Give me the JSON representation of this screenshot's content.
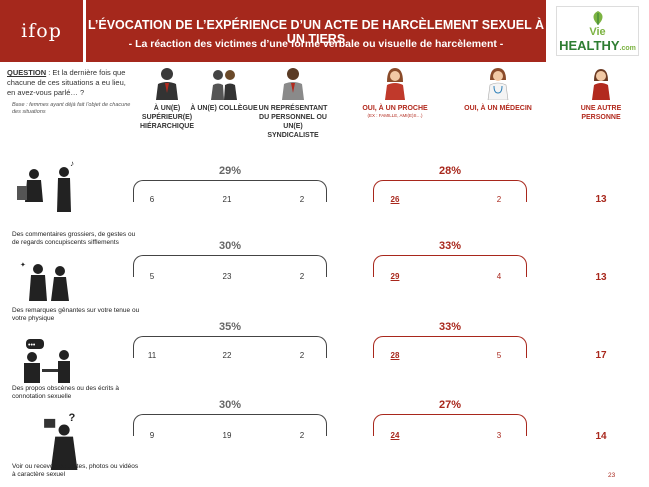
{
  "logo": {
    "text": "ifop"
  },
  "header": {
    "title": "L’ÉVOCATION DE L’EXPÉRIENCE D’UN ACTE DE HARCÈLEMENT SEXUEL À UN TIERS",
    "subtitle": "- La réaction des victimes d’une forme verbale ou visuelle de harcèlement -"
  },
  "partner_logo": {
    "line1": "Vie",
    "line2": "HEALTHY",
    "suffix": ".com"
  },
  "question": {
    "label": "QUESTION",
    "text": " : Et la dernière fois que chacune de ces situations a eu lieu, en avez-vous parlé… ?",
    "base": "Base : femmes ayant déjà fait l’objet de chacune des situations"
  },
  "columns": [
    {
      "label": "À UN(E) SUPÉRIEUR(E) HIÉRARCHIQUE",
      "icon": "businessman-icon"
    },
    {
      "label": "À UN(E) COLLÈGUE",
      "icon": "colleagues-icon"
    },
    {
      "label": "UN REPRÉSENTANT DU PERSONNEL OU UN(E) SYNDICALISTE",
      "icon": "representative-icon"
    },
    {
      "label": "OUI, À UN PROCHE",
      "sub": "(EX : FAMILLE, AMI(E)S…)",
      "icon": "woman-icon"
    },
    {
      "label": "OUI, À UN MÉDECIN",
      "icon": "doctor-icon"
    },
    {
      "label": "UNE AUTRE PERSONNE",
      "icon": "person-icon"
    }
  ],
  "rows": [
    {
      "label": "Des commentaires grossiers, de gestes ou de regards concupiscents sifflements",
      "work_total": "29%",
      "work": [
        "6",
        "21",
        "2"
      ],
      "private_total": "28%",
      "private": [
        "26",
        "2"
      ],
      "other": "13"
    },
    {
      "label": "Des remarques gênantes sur votre tenue ou votre physique",
      "work_total": "30%",
      "work": [
        "5",
        "23",
        "2"
      ],
      "private_total": "33%",
      "private": [
        "29",
        "4"
      ],
      "other": "13"
    },
    {
      "label": "Des propos obscènes ou des écrits à connotation sexuelle",
      "work_total": "35%",
      "work": [
        "11",
        "22",
        "2"
      ],
      "private_total": "33%",
      "private": [
        "28",
        "5"
      ],
      "other": "17"
    },
    {
      "label": "Voir ou recevoir de textes, photos ou vidéos à caractère sexuel",
      "work_total": "30%",
      "work": [
        "9",
        "19",
        "2"
      ],
      "private_total": "27%",
      "private": [
        "24",
        "3"
      ],
      "other": "14"
    }
  ],
  "page_number": "23",
  "colors": {
    "brand": "#a5281c",
    "accent_red": "#a8271c",
    "neutral": "#444444"
  }
}
